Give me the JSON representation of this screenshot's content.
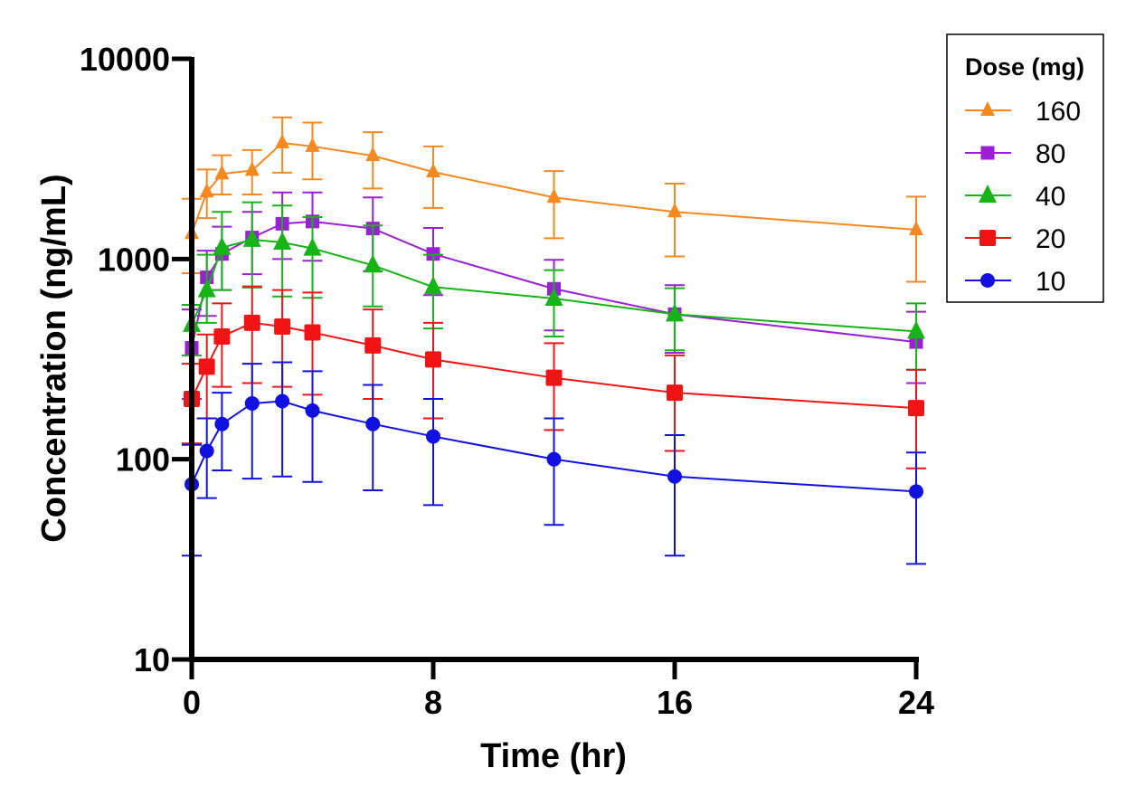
{
  "chart_data": {
    "type": "line",
    "title": "",
    "xlabel": "Time (hr)",
    "ylabel": "Concentration (ng/mL)",
    "yscale": "log",
    "xlim": [
      0,
      24
    ],
    "ylim": [
      10,
      10000
    ],
    "xticks": [
      0,
      8,
      16,
      24
    ],
    "xtick_labels": [
      "0",
      "8",
      "16",
      "24"
    ],
    "yticks": [
      10,
      100,
      1000,
      10000
    ],
    "ytick_labels": [
      "10",
      "100",
      "1000",
      "10000"
    ],
    "grid": false,
    "legend": {
      "title": "Dose (mg)",
      "placement": "top-right-outside"
    },
    "x": [
      0,
      0.5,
      1,
      2,
      3,
      4,
      6,
      8,
      12,
      16,
      24
    ],
    "series": [
      {
        "name": "160",
        "color": "#f5891f",
        "marker": "triangle-small",
        "values": [
          1340,
          2160,
          2660,
          2770,
          3800,
          3650,
          3280,
          2720,
          2030,
          1720,
          1400
        ],
        "err_upper": [
          2000,
          2800,
          3300,
          3500,
          5100,
          4800,
          4300,
          3650,
          2750,
          2380,
          2050
        ],
        "err_lower": [
          850,
          1600,
          2100,
          2100,
          2700,
          2500,
          2250,
          1800,
          1270,
          1030,
          770
        ]
      },
      {
        "name": "80",
        "color": "#9b1fd4",
        "marker": "square-small",
        "values": [
          360,
          810,
          1060,
          1280,
          1500,
          1540,
          1420,
          1060,
          710,
          530,
          385
        ],
        "err_upper": [
          560,
          1100,
          1450,
          1720,
          2150,
          2150,
          2030,
          1430,
          990,
          740,
          545
        ],
        "err_lower": [
          200,
          520,
          700,
          840,
          1000,
          980,
          870,
          660,
          440,
          340,
          240
        ]
      },
      {
        "name": "40",
        "color": "#16b416",
        "marker": "triangle",
        "values": [
          470,
          700,
          1140,
          1250,
          1210,
          1130,
          930,
          725,
          635,
          530,
          435
        ],
        "err_upper": [
          590,
          1050,
          1720,
          1920,
          1850,
          1620,
          1470,
          1050,
          880,
          715,
          600
        ],
        "err_lower": [
          330,
          480,
          700,
          720,
          650,
          640,
          580,
          450,
          410,
          350,
          280
        ]
      },
      {
        "name": "20",
        "color": "#f01414",
        "marker": "square",
        "values": [
          200,
          290,
          410,
          480,
          460,
          430,
          370,
          315,
          255,
          215,
          180
        ],
        "err_upper": [
          300,
          420,
          600,
          730,
          700,
          680,
          560,
          480,
          380,
          330,
          280
        ],
        "err_lower": [
          120,
          160,
          230,
          240,
          230,
          210,
          200,
          160,
          140,
          110,
          90
        ]
      },
      {
        "name": "10",
        "color": "#1010e0",
        "marker": "circle",
        "values": [
          75,
          110,
          150,
          190,
          195,
          175,
          150,
          130,
          100,
          82,
          69
        ],
        "err_upper": [
          118,
          160,
          215,
          300,
          305,
          275,
          235,
          200,
          160,
          132,
          108
        ],
        "err_lower": [
          33,
          64,
          88,
          80,
          82,
          77,
          70,
          59,
          47,
          33,
          30
        ]
      }
    ]
  }
}
